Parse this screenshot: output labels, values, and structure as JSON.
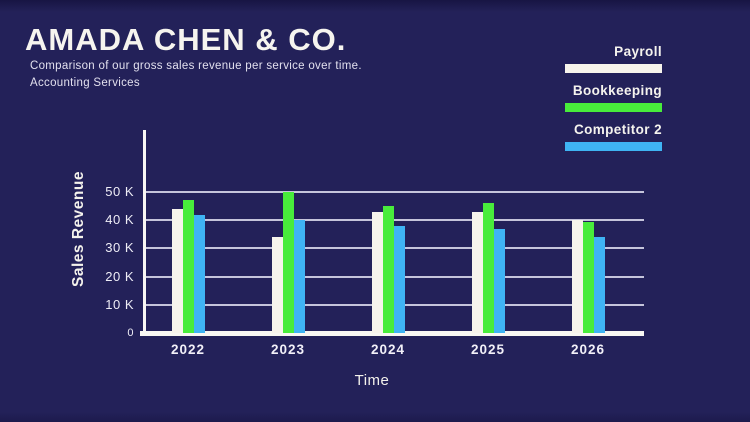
{
  "header": {
    "title": "AMADA CHEN & CO.",
    "subtitle_line1": "Comparison of our gross sales revenue per service over time.",
    "subtitle_line2": "Accounting Services"
  },
  "colors": {
    "background": "#232159",
    "payroll": "#F7F4EC",
    "bookkeeping": "#48EC3B",
    "competitor_2": "#3FB4F4",
    "axis": "#F8F7F3",
    "gridline": "#E2E0F2",
    "text": "#F5F3EE"
  },
  "chart_data": {
    "type": "bar",
    "title": "AMADA CHEN & CO.",
    "categories": [
      "2022",
      "2023",
      "2024",
      "2025",
      "2026"
    ],
    "series": [
      {
        "name": "Payroll",
        "color": "#F7F4EC",
        "values": [
          44,
          34,
          43,
          43,
          40
        ]
      },
      {
        "name": "Bookkeeping",
        "color": "#48EC3B",
        "values": [
          47,
          50,
          45,
          46,
          39.5
        ]
      },
      {
        "name": "Competitor 2",
        "color": "#3FB4F4",
        "values": [
          42,
          40,
          38,
          37,
          34
        ]
      }
    ],
    "values_unit": "K",
    "xlabel": "Time",
    "ylabel": "Sales Revenue",
    "ylim": [
      0,
      50
    ],
    "yticks": [
      0,
      10,
      20,
      30,
      40,
      50
    ],
    "ytick_labels": [
      "0",
      "10 K",
      "20 K",
      "30 K",
      "40 K",
      "50 K"
    ],
    "grid": true,
    "legend_position": "top-right"
  }
}
